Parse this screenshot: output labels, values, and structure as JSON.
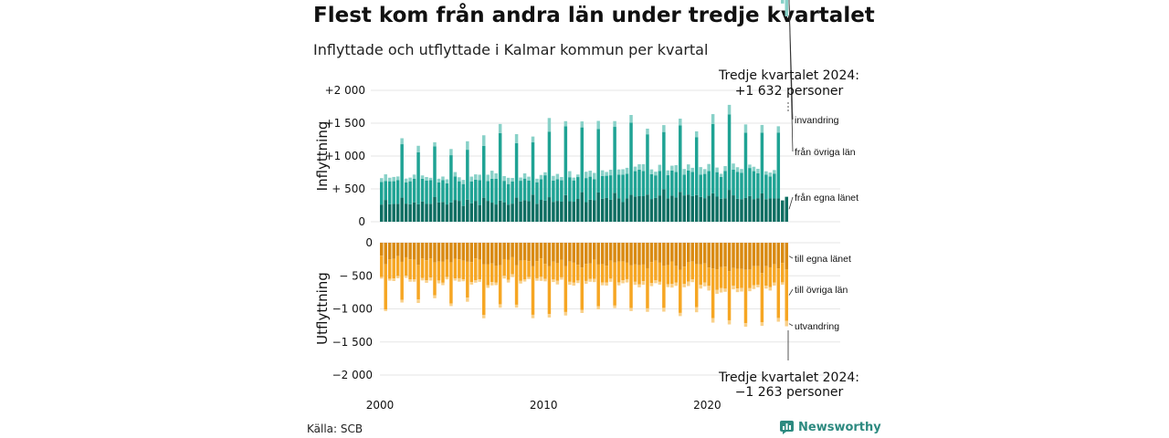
{
  "title": "Flest kom från andra län under tredje kvartalet",
  "subtitle": "Inflyttade och utflyttade i Kalmar kommun per kvartal",
  "source": "Källa: SCB",
  "brand": "Newsworthy",
  "colors": {
    "in_own": "#0e6e62",
    "in_other": "#1fa394",
    "in_abroad": "#88d1c8",
    "out_own": "#d98a12",
    "out_other": "#f6a623",
    "out_abroad": "#f9d089",
    "grid": "#e6e6e6",
    "brand": "#2d8a80"
  },
  "chart_data": [
    {
      "type": "bar",
      "stacked": true,
      "ylabel": "Inflyttning",
      "ylim": [
        0,
        2000
      ],
      "yticks": [
        0,
        500,
        1000,
        1500,
        2000
      ],
      "ytick_labels": [
        "0",
        "+ 500",
        "+1 000",
        "+1 500",
        "+2 000"
      ],
      "series_names": [
        "från egna länet",
        "från övriga län",
        "invandring"
      ],
      "series_values": {
        "own": [
          262,
          332,
          265,
          272,
          273,
          367,
          276,
          267,
          296,
          266,
          308,
          271,
          274,
          375,
          293,
          301,
          263,
          294,
          332,
          318,
          241,
          336,
          282,
          318,
          255,
          366,
          318,
          291,
          263,
          322,
          297,
          261,
          276,
          367,
          310,
          328,
          312,
          413,
          274,
          333,
          321,
          374,
          303,
          318,
          306,
          405,
          312,
          305,
          347,
          450,
          298,
          336,
          326,
          445,
          350,
          362,
          335,
          440,
          358,
          299,
          355,
          409,
          384,
          389,
          389,
          414,
          346,
          363,
          401,
          495,
          356,
          397,
          370,
          455,
          401,
          414,
          390,
          407,
          377,
          359,
          399,
          432,
          382,
          350,
          358,
          485,
          402,
          349,
          344,
          362,
          390,
          345,
          359,
          431,
          343,
          355,
          355,
          355,
          325,
          380
        ],
        "other": [
          343,
          286,
          351,
          345,
          359,
          813,
          321,
          349,
          357,
          790,
          346,
          357,
          360,
          773,
          305,
          331,
          322,
          719,
          358,
          298,
          333,
          760,
          333,
          323,
          379,
          789,
          301,
          363,
          393,
          1028,
          326,
          313,
          338,
          828,
          314,
          329,
          316,
          795,
          327,
          315,
          386,
          998,
          324,
          331,
          325,
          1048,
          366,
          324,
          333,
          986,
          367,
          350,
          320,
          968,
          345,
          338,
          372,
          1004,
          360,
          416,
          377,
          1099,
          386,
          405,
          383,
          917,
          379,
          343,
          373,
          871,
          352,
          381,
          389,
          1011,
          314,
          364,
          370,
          878,
          339,
          369,
          373,
          1054,
          373,
          332,
          413,
          1150,
          392,
          408,
          399,
          994,
          428,
          425,
          381,
          926,
          375,
          335,
          378,
          1003
        ],
        "abroad": [
          59,
          104,
          54,
          65,
          57,
          91,
          60,
          56,
          65,
          100,
          51,
          53,
          35,
          62,
          57,
          56,
          61,
          94,
          66,
          61,
          63,
          129,
          72,
          80,
          82,
          161,
          97,
          123,
          81,
          138,
          72,
          95,
          53,
          138,
          49,
          79,
          58,
          89,
          54,
          64,
          46,
          207,
          71,
          79,
          50,
          78,
          92,
          43,
          39,
          91,
          96,
          91,
          97,
          122,
          88,
          58,
          85,
          88,
          78,
          84,
          89,
          117,
          69,
          81,
          104,
          86,
          72,
          56,
          93,
          105,
          74,
          75,
          102,
          103,
          88,
          95,
          61,
          91,
          116,
          73,
          107,
          152,
          70,
          48,
          76,
          144,
          92,
          73,
          60,
          125,
          52,
          67,
          66,
          116,
          50,
          59,
          54,
          95,
          54,
          249
        ]
      },
      "annotation": [
        "Tredje kvartalet 2024:",
        "+1 632 personer"
      ],
      "x_ticks": [
        2000,
        2010,
        2020
      ]
    },
    {
      "type": "bar",
      "stacked": true,
      "ylabel": "Utflyttning",
      "ylim": [
        -2000,
        0
      ],
      "yticks": [
        0,
        -500,
        -1000,
        -1500,
        -2000
      ],
      "ytick_labels": [
        "0",
        "− 500",
        "−1 000",
        "−1 500",
        "−2 000"
      ],
      "series_names": [
        "till egna länet",
        "till övriga län",
        "utvandring"
      ],
      "series_values": {
        "own": [
          196,
          326,
          249,
          245,
          203,
          289,
          220,
          250,
          257,
          336,
          239,
          265,
          235,
          298,
          286,
          288,
          257,
          299,
          242,
          250,
          271,
          288,
          293,
          237,
          257,
          329,
          324,
          314,
          350,
          339,
          248,
          261,
          219,
          343,
          272,
          262,
          279,
          357,
          277,
          237,
          321,
          357,
          287,
          309,
          260,
          352,
          286,
          302,
          335,
          375,
          319,
          315,
          257,
          330,
          323,
          346,
          271,
          301,
          284,
          285,
          302,
          343,
          329,
          342,
          330,
          386,
          294,
          271,
          302,
          350,
          337,
          283,
          350,
          407,
          361,
          295,
          286,
          327,
          329,
          314,
          375,
          390,
          401,
          370,
          362,
          429,
          381,
          394,
          397,
          410,
          405,
          355,
          354,
          457,
          355,
          372,
          327,
          388,
          305,
          405
        ],
        "other": [
          324,
          684,
          295,
          296,
          299,
          574,
          279,
          303,
          297,
          521,
          292,
          303,
          293,
          498,
          285,
          317,
          263,
          621,
          298,
          287,
          282,
          542,
          303,
          329,
          297,
          761,
          320,
          281,
          254,
          591,
          253,
          299,
          256,
          594,
          305,
          294,
          238,
          732,
          260,
          279,
          225,
          722,
          269,
          264,
          263,
          695,
          305,
          302,
          236,
          639,
          259,
          233,
          290,
          631,
          278,
          256,
          272,
          649,
          315,
          281,
          249,
          645,
          262,
          289,
          251,
          606,
          313,
          295,
          289,
          635,
          290,
          338,
          250,
          654,
          260,
          294,
          267,
          648,
          306,
          288,
          278,
          748,
          313,
          317,
          332,
          743,
          267,
          298,
          288,
          805,
          282,
          289,
          280,
          743,
          295,
          297,
          273,
          749,
          294,
          778
        ],
        "abroad": [
          23,
          23,
          30,
          38,
          35,
          41,
          32,
          36,
          35,
          54,
          39,
          38,
          44,
          43,
          44,
          37,
          34,
          38,
          32,
          52,
          30,
          62,
          37,
          38,
          37,
          52,
          38,
          50,
          37,
          53,
          41,
          42,
          45,
          45,
          40,
          31,
          33,
          52,
          38,
          61,
          38,
          51,
          38,
          58,
          35,
          53,
          45,
          44,
          39,
          48,
          43,
          42,
          48,
          47,
          43,
          46,
          48,
          38,
          46,
          47,
          50,
          45,
          46,
          43,
          55,
          53,
          50,
          46,
          43,
          57,
          44,
          57,
          52,
          48,
          53,
          66,
          43,
          76,
          58,
          57,
          70,
          70,
          59,
          66,
          48,
          63,
          57,
          55,
          53,
          55,
          46,
          56,
          40,
          57,
          44,
          54,
          48,
          57,
          36,
          80
        ]
      },
      "annotation": [
        "Tredje kvartalet 2024:",
        "−1 263 personer"
      ],
      "x_ticks": [
        2000,
        2010,
        2020
      ]
    }
  ]
}
